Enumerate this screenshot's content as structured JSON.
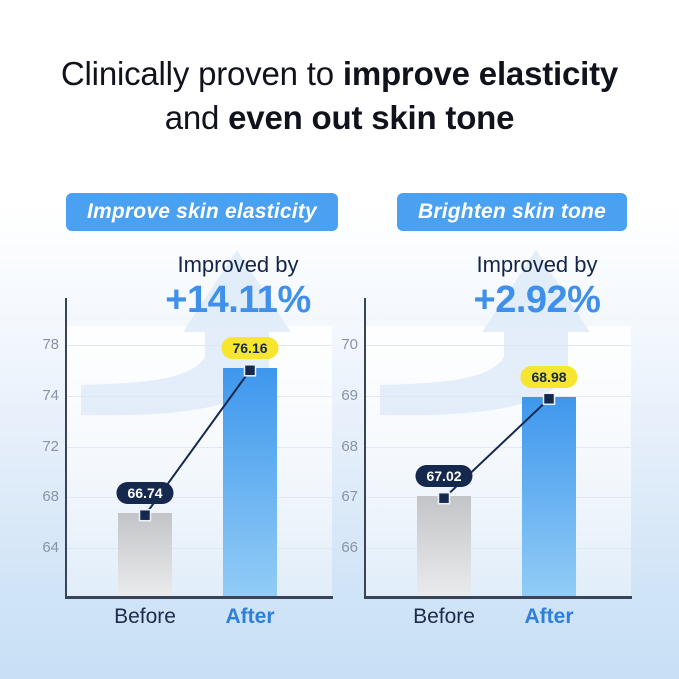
{
  "title": {
    "line1_regular": "Clinically proven to ",
    "line1_bold": "improve elasticity",
    "line2_regular": "and ",
    "line2_bold": "even out skin tone"
  },
  "colors": {
    "pill_blue": "#4aa0f1",
    "accent_blue": "#3f90ea",
    "navy": "#15294e",
    "badge_yellow": "#f7e52f",
    "after_label_blue": "#2e7fd9",
    "bar_blue_top": "#3e97ed",
    "bar_blue_bottom": "#92ccf6",
    "bar_gray_top": "#c3c4c7",
    "bar_gray_bottom": "#eaebed",
    "background_bottom": "#c7e0f6"
  },
  "chart_data": [
    {
      "type": "bar",
      "title": "Improve skin elasticity",
      "annotation_label": "Improved by",
      "annotation_value": "+14.11%",
      "categories": [
        "Before",
        "After"
      ],
      "values": [
        66.74,
        76.16
      ],
      "yticks_display": [
        78,
        74,
        72,
        68,
        64
      ],
      "ylim": [
        60.2,
        79.5
      ],
      "xlabel": "",
      "ylabel": "",
      "grid": true,
      "legend": "none"
    },
    {
      "type": "bar",
      "title": "Brighten skin tone",
      "annotation_label": "Improved by",
      "annotation_value": "+2.92%",
      "categories": [
        "Before",
        "After"
      ],
      "values": [
        67.02,
        68.98
      ],
      "yticks_display": [
        70,
        69,
        68,
        67,
        66
      ],
      "ylim": [
        65.0,
        70.4
      ],
      "xlabel": "",
      "ylabel": "",
      "grid": true,
      "legend": "none"
    }
  ]
}
